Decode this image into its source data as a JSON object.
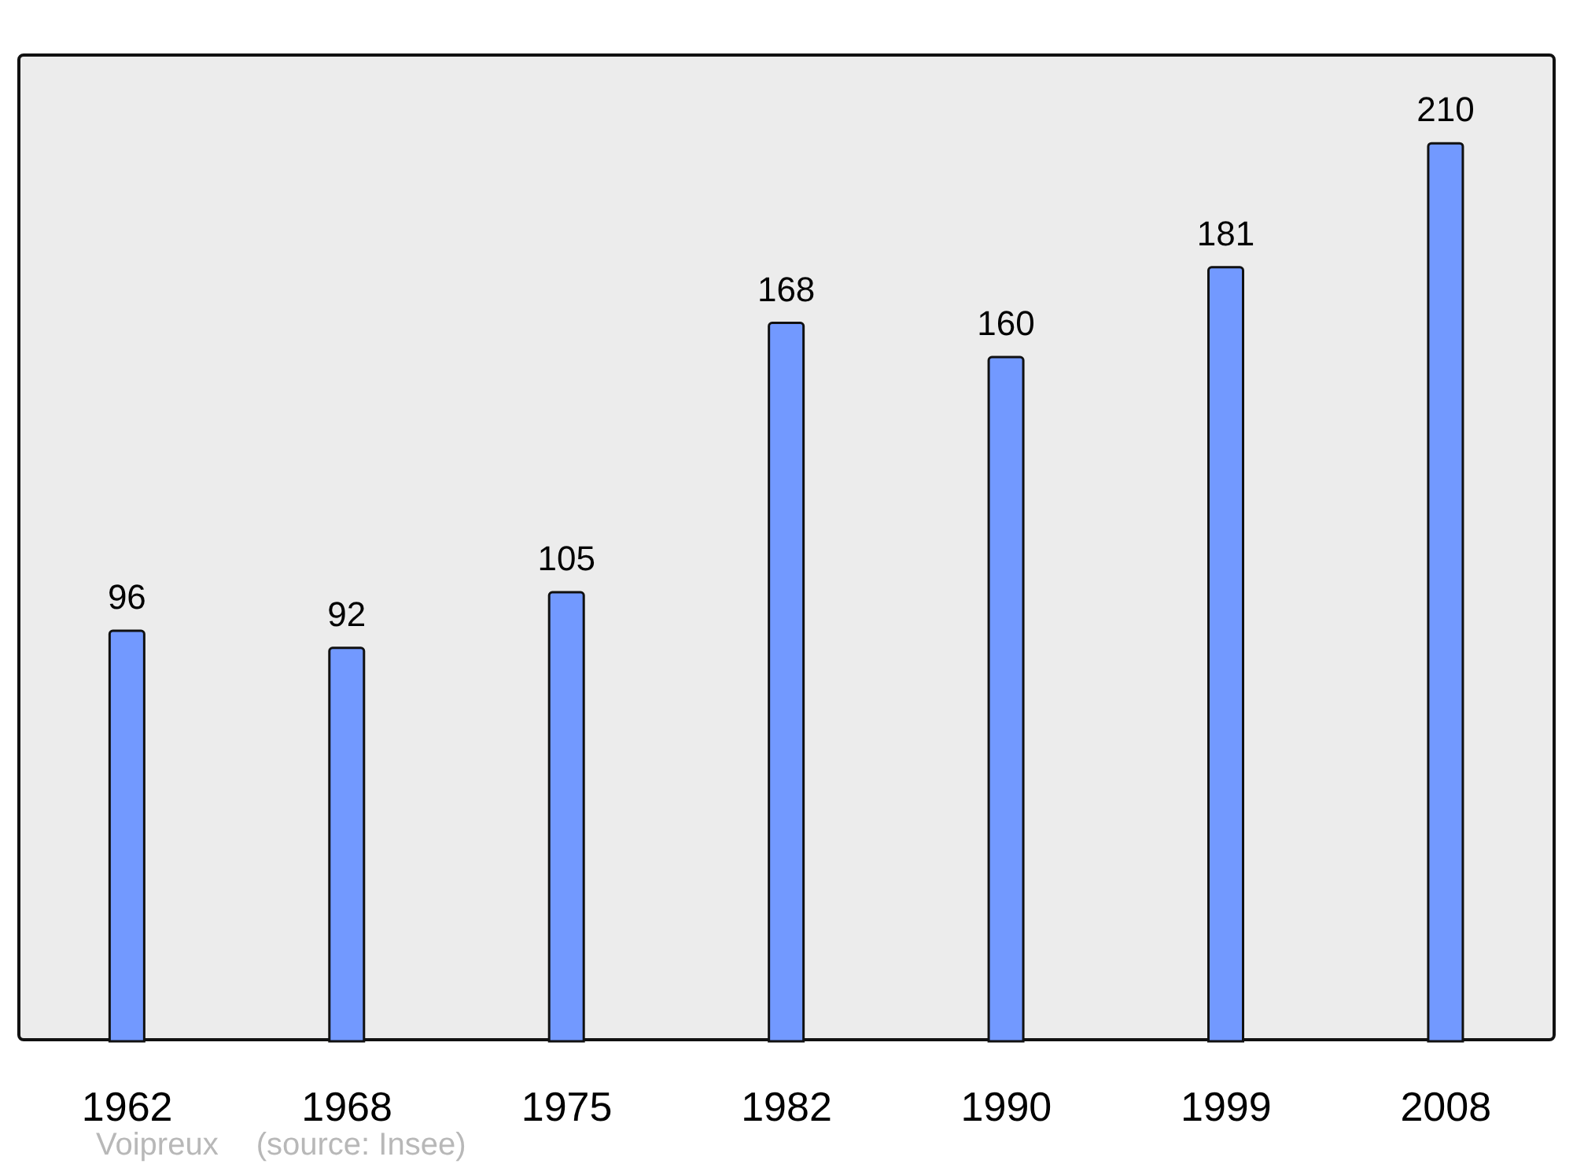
{
  "chart_data": {
    "type": "bar",
    "categories": [
      "1962",
      "1968",
      "1975",
      "1982",
      "1990",
      "1999",
      "2008"
    ],
    "values": [
      96,
      92,
      105,
      168,
      160,
      181,
      210
    ],
    "color": "#7299ff",
    "data_labels": true,
    "annotations": [
      "Voipreux",
      "(source: Insee)"
    ]
  }
}
